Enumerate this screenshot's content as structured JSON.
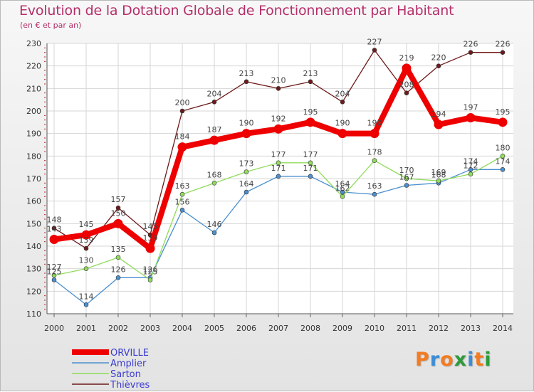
{
  "header": {
    "title": "Evolution de la Dotation Globale de Fonctionnement par Habitant",
    "subtitle": "(en € et par an)"
  },
  "logo": {
    "text": "Proxiti",
    "colors": [
      "#f47b20",
      "#3a8dd6",
      "#f47b20",
      "#2e9a3a",
      "#3a8dd6",
      "#f47b20",
      "#2e9a3a"
    ]
  },
  "chart_data": {
    "type": "line",
    "title": "Evolution de la Dotation Globale de Fonctionnement par Habitant",
    "subtitle": "(en € et par an)",
    "xlabel": "",
    "ylabel": "",
    "categories": [
      "2000",
      "2001",
      "2002",
      "2003",
      "2004",
      "2005",
      "2006",
      "2007",
      "2008",
      "2009",
      "2010",
      "2011",
      "2012",
      "2013",
      "2014"
    ],
    "ylim": [
      110,
      230
    ],
    "yticks": [
      "110",
      "120",
      "130",
      "140",
      "150",
      "160",
      "170",
      "180",
      "190",
      "200",
      "210",
      "220",
      "230"
    ],
    "grid": true,
    "legend_position": "bottom-left",
    "series": [
      {
        "name": "Thièvres",
        "color": "#6e1a1a",
        "values": [
          148,
          139,
          157,
          145,
          200,
          204,
          213,
          210,
          213,
          204,
          227,
          208,
          220,
          226,
          226
        ],
        "labels": [
          "148",
          "139",
          "157",
          "145",
          "200",
          "204",
          "213",
          "210",
          "213",
          "204",
          "227",
          "208",
          "220",
          "226",
          "226"
        ]
      },
      {
        "name": "Amplier",
        "color": "#4a8fcf",
        "values": [
          125,
          114,
          126,
          126,
          156,
          146,
          164,
          171,
          171,
          164,
          163,
          167,
          168,
          174,
          174
        ],
        "labels": [
          "125",
          "114",
          "126",
          "126",
          "156",
          "146",
          "164",
          "171",
          "171",
          "164",
          "163",
          "167",
          "168",
          "174",
          "174"
        ]
      },
      {
        "name": "Sarton",
        "color": "#8fdc5a",
        "values": [
          127,
          130,
          135,
          125,
          163,
          168,
          173,
          177,
          177,
          162,
          178,
          170,
          169,
          172,
          180
        ],
        "labels": [
          "127",
          "130",
          "135",
          "125",
          "163",
          "168",
          "173",
          "177",
          "177",
          "162",
          "178",
          "170",
          "169",
          "172",
          "180"
        ]
      },
      {
        "name": "ORVILLE",
        "color": "#ef0000",
        "values": [
          143,
          145,
          150,
          139,
          184,
          187,
          190,
          192,
          195,
          190,
          190,
          219,
          194,
          197,
          195
        ],
        "labels": [
          "143",
          "145",
          "150",
          "139",
          "184",
          "187",
          "190",
          "192",
          "195",
          "190",
          "190",
          "219",
          "194",
          "197",
          "195"
        ]
      }
    ],
    "legend": [
      "ORVILLE",
      "Amplier",
      "Sarton",
      "Thièvres"
    ]
  }
}
